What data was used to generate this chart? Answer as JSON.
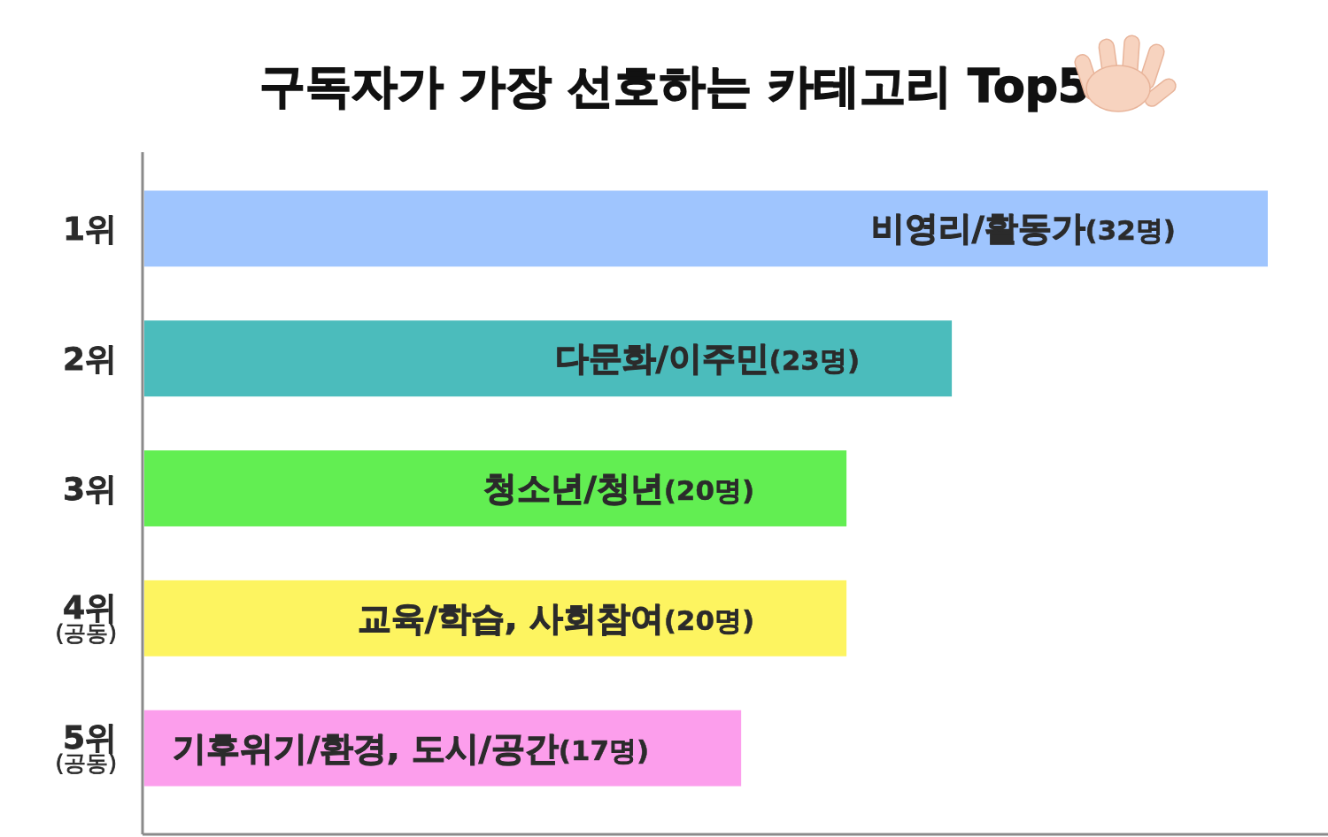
{
  "chart_data": {
    "type": "bar",
    "orientation": "horizontal",
    "title": "구독자가 가장 선호하는 카테고리 Top5",
    "categories": [
      "1위",
      "2위",
      "3위",
      "4위\n(공동)",
      "5위\n(공동)"
    ],
    "values": [
      32,
      23,
      20,
      20,
      17
    ],
    "colors": [
      "#9fc5fe",
      "#4bbcbc",
      "#62ee52",
      "#fdf460",
      "#fc9eec"
    ],
    "value_labels": [
      "비영리/활동가(32명)",
      "다문화/이주민(23명)",
      "청소년/청년(20명)",
      "교육/학습, 사회참여(20명)",
      "기후위기/환경, 도시/공간(17명)"
    ],
    "tick_labels": "y"
  }
}
